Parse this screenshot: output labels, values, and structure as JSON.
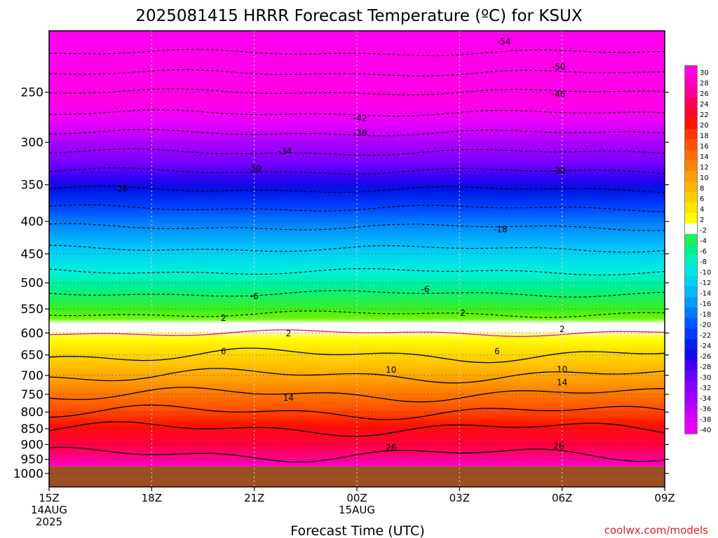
{
  "chart_data": {
    "type": "heatmap",
    "title": "2025081415 HRRR Forecast Temperature (ºC) for KSUX",
    "xlabel": "Forecast Time (UTC)",
    "ylabel": "",
    "credit": "coolwx.com/models",
    "x_ticks": [
      {
        "hour": 0,
        "lines": [
          "15Z",
          "14AUG",
          "2025"
        ]
      },
      {
        "hour": 3,
        "lines": [
          "18Z"
        ]
      },
      {
        "hour": 6,
        "lines": [
          "21Z"
        ]
      },
      {
        "hour": 9,
        "lines": [
          "00Z",
          "15AUG"
        ]
      },
      {
        "hour": 12,
        "lines": [
          "03Z"
        ]
      },
      {
        "hour": 15,
        "lines": [
          "06Z"
        ]
      },
      {
        "hour": 18,
        "lines": [
          "09Z"
        ]
      }
    ],
    "y_ticks": [
      250,
      300,
      350,
      400,
      450,
      500,
      550,
      600,
      650,
      700,
      750,
      800,
      850,
      900,
      950,
      1000
    ],
    "ylim": [
      1050,
      200
    ],
    "y_scale": "log-pressure",
    "colorbar_levels": [
      30,
      28,
      26,
      24,
      22,
      20,
      18,
      16,
      14,
      12,
      10,
      8,
      6,
      4,
      2,
      -2,
      -4,
      -6,
      -8,
      -10,
      -12,
      -14,
      -16,
      -18,
      -20,
      -22,
      -24,
      -26,
      -28,
      -30,
      -32,
      -34,
      -36,
      -38,
      -40
    ],
    "temperature_profile": [
      {
        "p": 200,
        "t": -58
      },
      {
        "p": 250,
        "t": -46
      },
      {
        "p": 300,
        "t": -36
      },
      {
        "p": 350,
        "t": -27
      },
      {
        "p": 400,
        "t": -19
      },
      {
        "p": 450,
        "t": -13
      },
      {
        "p": 500,
        "t": -8
      },
      {
        "p": 550,
        "t": -3
      },
      {
        "p": 600,
        "t": 2
      },
      {
        "p": 650,
        "t": 6
      },
      {
        "p": 700,
        "t": 10
      },
      {
        "p": 750,
        "t": 14
      },
      {
        "p": 800,
        "t": 18
      },
      {
        "p": 850,
        "t": 22
      },
      {
        "p": 900,
        "t": 24
      },
      {
        "p": 950,
        "t": 27
      },
      {
        "p": 975,
        "t": 30
      }
    ],
    "surface_pressure": 975,
    "contour_labels": [
      {
        "t": -54,
        "hour": 13.3,
        "p": 208
      },
      {
        "t": -50,
        "hour": 14.9,
        "p": 228
      },
      {
        "t": -46,
        "hour": 14.9,
        "p": 252
      },
      {
        "t": -42,
        "hour": 9.1,
        "p": 275
      },
      {
        "t": -38,
        "hour": 9.1,
        "p": 290
      },
      {
        "t": -34,
        "hour": 6.9,
        "p": 310
      },
      {
        "t": -30,
        "hour": 6.0,
        "p": 330
      },
      {
        "t": -30,
        "hour": 14.9,
        "p": 333
      },
      {
        "t": -26,
        "hour": 2.1,
        "p": 355
      },
      {
        "t": -18,
        "hour": 13.2,
        "p": 412
      },
      {
        "t": -6,
        "hour": 6.0,
        "p": 525
      },
      {
        "t": -6,
        "hour": 11.0,
        "p": 512
      },
      {
        "t": 2,
        "hour": 5.1,
        "p": 568
      },
      {
        "t": 2,
        "hour": 12.1,
        "p": 558
      },
      {
        "t": 2,
        "hour": 7.0,
        "p": 601
      },
      {
        "t": 2,
        "hour": 15.0,
        "p": 592
      },
      {
        "t": 6,
        "hour": 5.1,
        "p": 641
      },
      {
        "t": 6,
        "hour": 13.1,
        "p": 641
      },
      {
        "t": 10,
        "hour": 10.0,
        "p": 686
      },
      {
        "t": 10,
        "hour": 15.0,
        "p": 685
      },
      {
        "t": 14,
        "hour": 7.0,
        "p": 760
      },
      {
        "t": 14,
        "hour": 15.0,
        "p": 718
      },
      {
        "t": 26,
        "hour": 10.0,
        "p": 910
      },
      {
        "t": 26,
        "hour": 14.9,
        "p": 905
      }
    ]
  }
}
